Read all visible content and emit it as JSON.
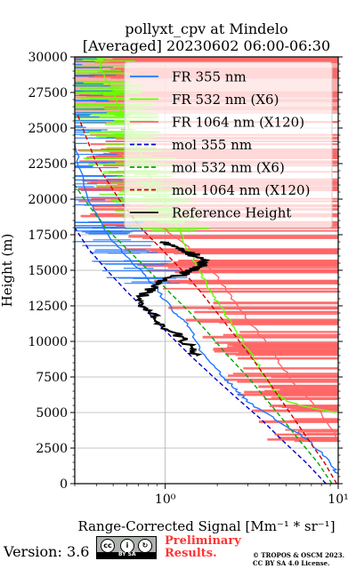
{
  "chart_data": {
    "type": "line",
    "title": "pollyxt_cpv at Mindelo",
    "subtitle": "[Averaged] 20230602 06:00-06:30",
    "xlabel": "Range-Corrected Signal [Mm⁻¹ * sr⁻¹]",
    "ylabel": "Height (m)",
    "xscale": "log",
    "xlim": [
      0.3,
      10
    ],
    "ylim": [
      0,
      30000
    ],
    "yticks": [
      0,
      2500,
      5000,
      7500,
      10000,
      12500,
      15000,
      17500,
      20000,
      22500,
      25000,
      27500,
      30000
    ],
    "ytick_labels": [
      "0",
      "2500",
      "5000",
      "7500",
      "10000",
      "12500",
      "15000",
      "17500",
      "20000",
      "22500",
      "25000",
      "27500",
      "30000"
    ],
    "xticks": [
      1,
      10
    ],
    "xtick_labels": [
      "10⁰",
      "10¹"
    ],
    "grid": true,
    "legend_position": "top-right",
    "series": [
      {
        "name": "FR 355 nm",
        "color": "#1f77ff",
        "style": "solid",
        "x": [
          10,
          9.5,
          9,
          8,
          6,
          4.5,
          3.5,
          3,
          2.7,
          2.5,
          2.2,
          1.9,
          1.6,
          1.45,
          1.3,
          1.15,
          0.98,
          0.85,
          0.72,
          0.6,
          0.5,
          0.42,
          0.36,
          0.32,
          0.3
        ],
        "y": [
          700,
          1000,
          1500,
          2200,
          3500,
          4400,
          5200,
          5800,
          6300,
          6800,
          7400,
          8300,
          9400,
          10500,
          11400,
          12000,
          13000,
          14000,
          15000,
          16000,
          17000,
          18500,
          20000,
          22000,
          24000
        ]
      },
      {
        "name": "FR 532 nm (X6)",
        "color": "#66ff00",
        "style": "solid",
        "x": [
          10,
          9,
          6.5,
          5,
          4.5,
          4,
          3.6,
          3.2,
          2.8,
          2.5,
          2.2,
          2,
          1.8,
          1.65,
          1.5,
          1.35,
          1.2,
          1.05,
          0.9,
          0.75,
          0.62,
          0.5,
          0.4
        ],
        "y": [
          5000,
          5100,
          5400,
          5800,
          6200,
          7000,
          8000,
          9000,
          10000,
          11000,
          12000,
          12800,
          13600,
          14500,
          15500,
          16500,
          17800,
          19000,
          20500,
          22500,
          25000,
          27500,
          30000
        ]
      },
      {
        "name": "FR 1064 nm (X120)",
        "color": "#ff6666",
        "style": "solid",
        "x": [
          10,
          8,
          6,
          5.2,
          4.6,
          4,
          3.5,
          3,
          2.6,
          2.3,
          2,
          1.7,
          1.4,
          1.1,
          0.85
        ],
        "y": [
          3000,
          5000,
          6500,
          7500,
          8500,
          9500,
          10500,
          11500,
          12500,
          13500,
          14500,
          15500,
          16500,
          17500,
          18500
        ]
      },
      {
        "name": "mol 355 nm",
        "color": "#0000cc",
        "style": "dashed",
        "x": [
          8.5,
          6.5,
          4.8,
          3.6,
          2.6,
          1.9,
          1.4,
          1.05,
          0.8,
          0.6,
          0.46,
          0.36,
          0.3
        ],
        "y": [
          0,
          1500,
          3000,
          4500,
          6000,
          7500,
          9000,
          10500,
          12000,
          13500,
          15000,
          16500,
          18000
        ]
      },
      {
        "name": "mol 532 nm (X6)",
        "color": "#00aa00",
        "style": "dashed",
        "x": [
          9.2,
          7.6,
          6,
          4.8,
          3.8,
          3,
          2.3,
          1.8,
          1.4,
          1.05,
          0.8,
          0.6,
          0.45,
          0.34,
          0.3
        ],
        "y": [
          0,
          1500,
          3000,
          4500,
          6000,
          7500,
          9000,
          10500,
          12000,
          13500,
          15000,
          16500,
          18000,
          20000,
          21000
        ]
      },
      {
        "name": "mol 1064 nm (X120)",
        "color": "#cc0000",
        "style": "dashed",
        "x": [
          9.8,
          8.3,
          6.8,
          5.6,
          4.6,
          3.8,
          3.1,
          2.5,
          2,
          1.6,
          1.25,
          0.95,
          0.72,
          0.54,
          0.4,
          0.31
        ],
        "y": [
          0,
          1500,
          3000,
          4500,
          6000,
          7500,
          9000,
          10500,
          12000,
          13500,
          15000,
          16500,
          18000,
          20000,
          22500,
          26000
        ]
      },
      {
        "name": "Reference Height",
        "color": "#000000",
        "style": "solid",
        "x": [
          1.55,
          1.45,
          1.3,
          1.15,
          1.0,
          0.9,
          0.8,
          0.75,
          0.72,
          0.78,
          0.85,
          0.95,
          1.1,
          1.3,
          1.45,
          1.6,
          1.7,
          1.55,
          1.4,
          1.25,
          1.1,
          0.95
        ],
        "y": [
          9000,
          9500,
          10000,
          10500,
          11000,
          11500,
          12000,
          12500,
          13000,
          13500,
          13800,
          14200,
          14500,
          14800,
          15000,
          15300,
          15600,
          15900,
          16200,
          16500,
          16800,
          17000
        ]
      }
    ]
  },
  "footer": {
    "version": "Version: 3.6",
    "license_badge_text": "BY    SA",
    "preliminary_line1": "Preliminary",
    "preliminary_line2": "Results.",
    "copyright_line1": "© TROPOS & OSCM 2023.",
    "copyright_line2": "CC BY SA 4.0 License."
  }
}
